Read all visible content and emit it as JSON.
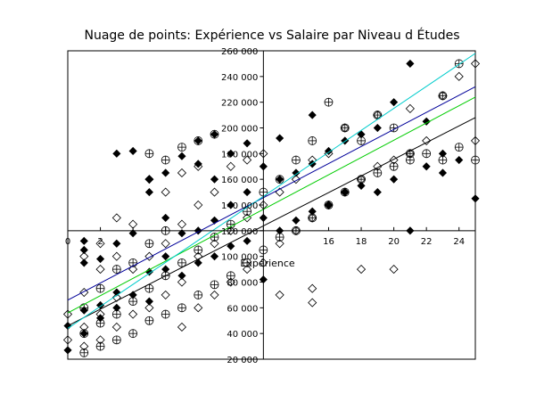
{
  "chart_data": {
    "type": "scatter",
    "title": "Nuage de points: Expérience vs Salaire par Niveau d Études",
    "xlabel": "Expérience",
    "ylabel": "",
    "xlim": [
      0,
      25
    ],
    "ylim": [
      20000,
      260000
    ],
    "x_ticks": [
      0,
      2,
      4,
      6,
      8,
      10,
      12,
      14,
      16,
      18,
      20,
      22,
      24
    ],
    "x_tick_labels": [
      "0",
      "2",
      "",
      "",
      "",
      "",
      "",
      "",
      "16",
      "18",
      "20",
      "22",
      "24"
    ],
    "y_ticks": [
      20000,
      40000,
      60000,
      80000,
      100000,
      120000,
      140000,
      160000,
      180000,
      200000,
      220000,
      240000,
      260000
    ],
    "y_tick_labels": [
      "20 000",
      "40 000",
      "60 000",
      "80 000",
      "100 000",
      "120 000",
      "140 000",
      "160 000",
      "180 000",
      "200 000",
      "220 000",
      "240 000",
      "260 000"
    ],
    "grid": false,
    "legend": "none",
    "colors": {
      "trend_black": "#000000",
      "trend_green": "#00cc00",
      "trend_blue": "#000099",
      "trend_cyan": "#00cccc"
    },
    "series": [
      {
        "marker": "filled-diamond",
        "points": [
          [
            0,
            27000
          ],
          [
            0,
            46000
          ],
          [
            1,
            40000
          ],
          [
            1,
            58000
          ],
          [
            1,
            95000
          ],
          [
            1,
            105000
          ],
          [
            1,
            112000
          ],
          [
            2,
            52000
          ],
          [
            2,
            62000
          ],
          [
            2,
            98000
          ],
          [
            3,
            60000
          ],
          [
            3,
            72000
          ],
          [
            3,
            110000
          ],
          [
            3,
            180000
          ],
          [
            4,
            70000
          ],
          [
            4,
            182000
          ],
          [
            4,
            118000
          ],
          [
            5,
            65000
          ],
          [
            5,
            88000
          ],
          [
            5,
            150000
          ],
          [
            5,
            160000
          ],
          [
            6,
            90000
          ],
          [
            6,
            100000
          ],
          [
            6,
            130000
          ],
          [
            6,
            165000
          ],
          [
            7,
            85000
          ],
          [
            7,
            118000
          ],
          [
            7,
            178000
          ],
          [
            8,
            95000
          ],
          [
            8,
            120000
          ],
          [
            8,
            172000
          ],
          [
            8,
            190000
          ],
          [
            9,
            100000
          ],
          [
            9,
            128000
          ],
          [
            9,
            160000
          ],
          [
            9,
            195000
          ],
          [
            10,
            108000
          ],
          [
            10,
            140000
          ],
          [
            10,
            180000
          ],
          [
            11,
            112000
          ],
          [
            11,
            150000
          ],
          [
            11,
            188000
          ],
          [
            12,
            82000
          ],
          [
            12,
            130000
          ],
          [
            12,
            170000
          ],
          [
            13,
            120000
          ],
          [
            13,
            160000
          ],
          [
            13,
            192000
          ],
          [
            14,
            128000
          ],
          [
            14,
            165000
          ],
          [
            15,
            135000
          ],
          [
            15,
            172000
          ],
          [
            15,
            210000
          ],
          [
            16,
            140000
          ],
          [
            16,
            182000
          ],
          [
            17,
            150000
          ],
          [
            17,
            190000
          ],
          [
            18,
            155000
          ],
          [
            18,
            195000
          ],
          [
            19,
            150000
          ],
          [
            19,
            200000
          ],
          [
            20,
            160000
          ],
          [
            20,
            220000
          ],
          [
            21,
            120000
          ],
          [
            21,
            250000
          ],
          [
            22,
            170000
          ],
          [
            22,
            205000
          ],
          [
            23,
            165000
          ],
          [
            23,
            180000
          ],
          [
            24,
            175000
          ],
          [
            25,
            145000
          ]
        ]
      },
      {
        "marker": "open-diamond",
        "points": [
          [
            0,
            35000
          ],
          [
            0,
            55000
          ],
          [
            1,
            30000
          ],
          [
            1,
            45000
          ],
          [
            1,
            72000
          ],
          [
            1,
            100000
          ],
          [
            2,
            35000
          ],
          [
            2,
            55000
          ],
          [
            2,
            90000
          ],
          [
            2,
            110000
          ],
          [
            3,
            45000
          ],
          [
            3,
            68000
          ],
          [
            3,
            100000
          ],
          [
            3,
            130000
          ],
          [
            4,
            55000
          ],
          [
            4,
            90000
          ],
          [
            4,
            125000
          ],
          [
            5,
            60000
          ],
          [
            5,
            100000
          ],
          [
            5,
            160000
          ],
          [
            6,
            70000
          ],
          [
            6,
            110000
          ],
          [
            6,
            150000
          ],
          [
            7,
            45000
          ],
          [
            7,
            80000
          ],
          [
            7,
            125000
          ],
          [
            7,
            165000
          ],
          [
            8,
            60000
          ],
          [
            8,
            100000
          ],
          [
            8,
            140000
          ],
          [
            8,
            170000
          ],
          [
            9,
            70000
          ],
          [
            9,
            110000
          ],
          [
            9,
            150000
          ],
          [
            10,
            80000
          ],
          [
            10,
            120000
          ],
          [
            10,
            170000
          ],
          [
            11,
            90000
          ],
          [
            11,
            130000
          ],
          [
            11,
            175000
          ],
          [
            12,
            95000
          ],
          [
            12,
            140000
          ],
          [
            12,
            180000
          ],
          [
            13,
            70000
          ],
          [
            13,
            110000
          ],
          [
            13,
            150000
          ],
          [
            14,
            120000
          ],
          [
            14,
            160000
          ],
          [
            15,
            75000
          ],
          [
            15,
            64000
          ],
          [
            15,
            130000
          ],
          [
            15,
            175000
          ],
          [
            16,
            140000
          ],
          [
            16,
            180000
          ],
          [
            17,
            150000
          ],
          [
            17,
            200000
          ],
          [
            18,
            90000
          ],
          [
            18,
            160000
          ],
          [
            19,
            170000
          ],
          [
            19,
            210000
          ],
          [
            20,
            90000
          ],
          [
            20,
            175000
          ],
          [
            21,
            180000
          ],
          [
            21,
            215000
          ],
          [
            22,
            190000
          ],
          [
            23,
            225000
          ],
          [
            24,
            240000
          ],
          [
            25,
            250000
          ],
          [
            25,
            190000
          ]
        ]
      },
      {
        "marker": "circle-plus",
        "points": [
          [
            1,
            25000
          ],
          [
            1,
            40000
          ],
          [
            1,
            60000
          ],
          [
            2,
            30000
          ],
          [
            2,
            48000
          ],
          [
            2,
            75000
          ],
          [
            3,
            35000
          ],
          [
            3,
            55000
          ],
          [
            3,
            90000
          ],
          [
            4,
            40000
          ],
          [
            4,
            65000
          ],
          [
            4,
            95000
          ],
          [
            5,
            50000
          ],
          [
            5,
            75000
          ],
          [
            5,
            110000
          ],
          [
            5,
            180000
          ],
          [
            6,
            55000
          ],
          [
            6,
            85000
          ],
          [
            6,
            120000
          ],
          [
            6,
            175000
          ],
          [
            7,
            60000
          ],
          [
            7,
            95000
          ],
          [
            7,
            185000
          ],
          [
            8,
            70000
          ],
          [
            8,
            105000
          ],
          [
            8,
            190000
          ],
          [
            9,
            78000
          ],
          [
            9,
            115000
          ],
          [
            9,
            195000
          ],
          [
            10,
            85000
          ],
          [
            10,
            125000
          ],
          [
            11,
            95000
          ],
          [
            11,
            135000
          ],
          [
            12,
            105000
          ],
          [
            12,
            150000
          ],
          [
            13,
            115000
          ],
          [
            13,
            160000
          ],
          [
            14,
            120000
          ],
          [
            14,
            175000
          ],
          [
            15,
            130000
          ],
          [
            15,
            190000
          ],
          [
            16,
            140000
          ],
          [
            16,
            220000
          ],
          [
            17,
            150000
          ],
          [
            17,
            200000
          ],
          [
            18,
            160000
          ],
          [
            18,
            190000
          ],
          [
            19,
            165000
          ],
          [
            19,
            210000
          ],
          [
            20,
            170000
          ],
          [
            20,
            200000
          ],
          [
            21,
            175000
          ],
          [
            21,
            180000
          ],
          [
            22,
            180000
          ],
          [
            23,
            175000
          ],
          [
            23,
            225000
          ],
          [
            24,
            185000
          ],
          [
            24,
            250000
          ],
          [
            25,
            175000
          ]
        ]
      }
    ],
    "trend_lines": [
      {
        "color": "trend_black",
        "x": [
          0,
          25
        ],
        "y": [
          46000,
          208000
        ]
      },
      {
        "color": "trend_green",
        "x": [
          0,
          25
        ],
        "y": [
          56000,
          224000
        ]
      },
      {
        "color": "trend_blue",
        "x": [
          0,
          25
        ],
        "y": [
          66000,
          232000
        ]
      },
      {
        "color": "trend_cyan",
        "x": [
          0,
          25
        ],
        "y": [
          44000,
          258000
        ]
      }
    ]
  }
}
